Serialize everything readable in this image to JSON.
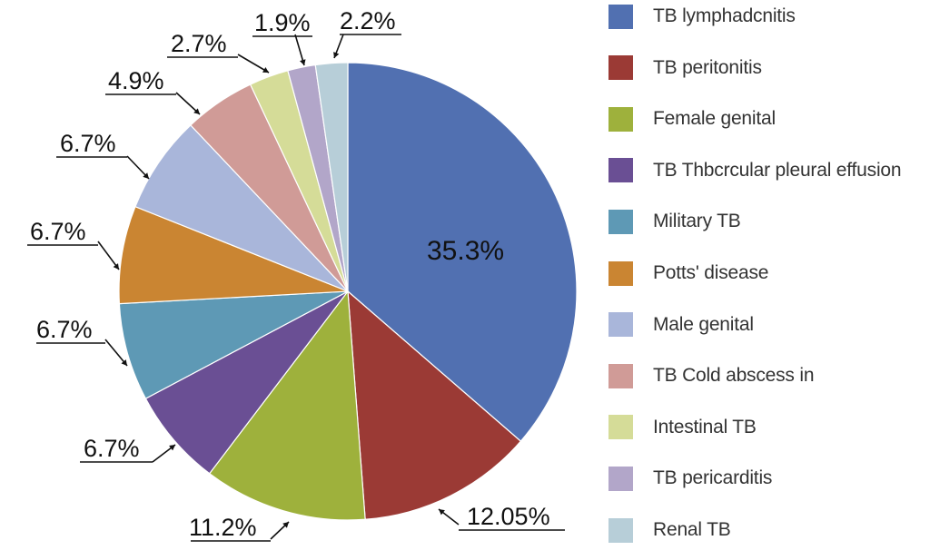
{
  "chart_data": {
    "type": "pie",
    "title": "",
    "slices": [
      {
        "label": "TB lymphadcnitis",
        "value": 35.3,
        "display": "35.3%",
        "color": "#5170b1"
      },
      {
        "label": "TB peritonitis",
        "value": 12.05,
        "display": "12.05%",
        "color": "#9b3a35"
      },
      {
        "label": "Female genital",
        "value": 11.2,
        "display": "11.2%",
        "color": "#9eb13c"
      },
      {
        "label": "TB Thbcrcular pleural effusion",
        "value": 6.7,
        "display": "6.7%",
        "color": "#6a4f94"
      },
      {
        "label": "Military TB",
        "value": 6.7,
        "display": "6.7%",
        "color": "#5e99b5"
      },
      {
        "label": "Potts' disease",
        "value": 6.7,
        "display": "6.7%",
        "color": "#ca8532"
      },
      {
        "label": "Male genital",
        "value": 6.7,
        "display": "6.7%",
        "color": "#a9b6da"
      },
      {
        "label": "TB Cold abscess in",
        "value": 4.9,
        "display": "4.9%",
        "color": "#d09b97"
      },
      {
        "label": "Intestinal TB",
        "value": 2.7,
        "display": "2.7%",
        "color": "#d5dc98"
      },
      {
        "label": "TB pericarditis",
        "value": 1.9,
        "display": "1.9%",
        "color": "#b2a6c9"
      },
      {
        "label": "Renal TB",
        "value": 2.2,
        "display": "2.2%",
        "color": "#b7ced8"
      }
    ],
    "legend_position": "right"
  }
}
